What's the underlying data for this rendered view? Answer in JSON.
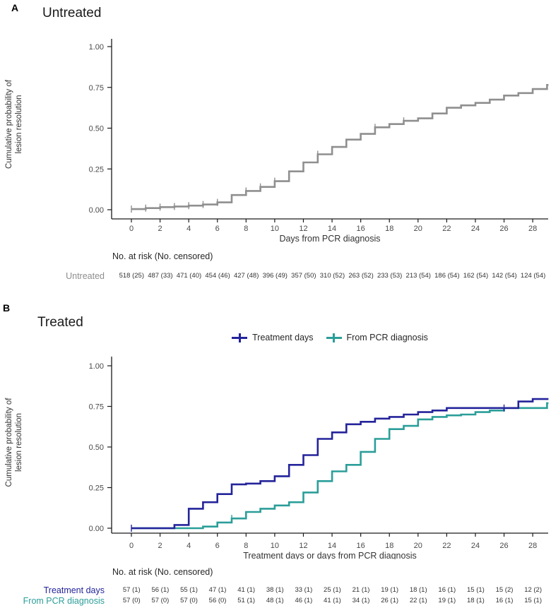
{
  "panel_a": {
    "label": "A",
    "title": "Untreated",
    "risk_header": "No. at risk (No. censored)",
    "risk_rows": [
      {
        "label": "Untreated",
        "color": "#8e8e8e",
        "values": [
          "518 (25)",
          "487 (33)",
          "471 (40)",
          "454 (46)",
          "427 (48)",
          "396 (49)",
          "357 (50)",
          "310 (52)",
          "263 (52)",
          "233 (53)",
          "213 (54)",
          "186 (54)",
          "162 (54)",
          "142 (54)",
          "124 (54)"
        ]
      }
    ]
  },
  "panel_b": {
    "label": "B",
    "title": "Treated",
    "risk_header": "No. at risk (No. censored)",
    "legend": [
      {
        "label": "Treatment days",
        "color": "#24249b"
      },
      {
        "label": "From PCR diagnosis",
        "color": "#2b9e99"
      }
    ],
    "risk_rows": [
      {
        "label": "Treatment days",
        "color": "#24249b",
        "values": [
          "57 (1)",
          "56 (1)",
          "55 (1)",
          "47 (1)",
          "41 (1)",
          "38 (1)",
          "33 (1)",
          "25 (1)",
          "21 (1)",
          "19 (1)",
          "18 (1)",
          "16 (1)",
          "15 (1)",
          "15 (2)",
          "12 (2)"
        ]
      },
      {
        "label": "From PCR diagnosis",
        "color": "#2b9e99",
        "values": [
          "57 (0)",
          "57 (0)",
          "57 (0)",
          "56 (0)",
          "51 (1)",
          "48 (1)",
          "46 (1)",
          "41 (1)",
          "34 (1)",
          "26 (1)",
          "22 (1)",
          "19 (1)",
          "18 (1)",
          "16 (1)",
          "15 (1)"
        ]
      }
    ]
  },
  "chart_data": [
    {
      "type": "line",
      "subtype": "step-cumulative-incidence",
      "panel": "A",
      "title": "Untreated",
      "xlabel": "Days from PCR diagnosis",
      "ylabel_lines": [
        "Cumulative probability of",
        "lesion resolution"
      ],
      "xlim": [
        0,
        29.1
      ],
      "ylim": [
        0,
        1
      ],
      "xticks": [
        0,
        2,
        4,
        6,
        8,
        10,
        12,
        14,
        16,
        18,
        20,
        22,
        24,
        26,
        28
      ],
      "yticks": [
        0.0,
        0.25,
        0.5,
        0.75,
        1.0
      ],
      "grid": false,
      "legend_position": "none",
      "series": [
        {
          "name": "Untreated",
          "color": "#8f8f8f",
          "days": [
            0,
            1,
            2,
            3,
            4,
            5,
            6,
            7,
            8,
            9,
            10,
            11,
            12,
            13,
            14,
            15,
            16,
            17,
            18,
            19,
            20,
            21,
            22,
            23,
            24,
            25,
            26,
            27,
            28,
            29
          ],
          "values": [
            0.004,
            0.01,
            0.016,
            0.02,
            0.025,
            0.032,
            0.045,
            0.09,
            0.115,
            0.14,
            0.175,
            0.235,
            0.29,
            0.34,
            0.385,
            0.43,
            0.465,
            0.505,
            0.525,
            0.545,
            0.56,
            0.59,
            0.625,
            0.64,
            0.655,
            0.675,
            0.7,
            0.715,
            0.74,
            0.765
          ],
          "censor_days": [
            0,
            1,
            2,
            3,
            4,
            5,
            6,
            8,
            9,
            10,
            13,
            17,
            19
          ]
        }
      ]
    },
    {
      "type": "line",
      "subtype": "step-cumulative-incidence",
      "panel": "B",
      "title": "Treated",
      "xlabel": "Treatment days or days from PCR diagnosis",
      "ylabel_lines": [
        "Cumulative probability of",
        "lesion resolution"
      ],
      "xlim": [
        0,
        29.1
      ],
      "ylim": [
        0,
        1
      ],
      "xticks": [
        0,
        2,
        4,
        6,
        8,
        10,
        12,
        14,
        16,
        18,
        20,
        22,
        24,
        26,
        28
      ],
      "yticks": [
        0.0,
        0.25,
        0.5,
        0.75,
        1.0
      ],
      "grid": false,
      "legend_position": "top-center",
      "series": [
        {
          "name": "From PCR diagnosis",
          "color": "#2b9e99",
          "days": [
            0,
            1,
            2,
            3,
            4,
            5,
            6,
            7,
            8,
            9,
            10,
            11,
            12,
            13,
            14,
            15,
            16,
            17,
            18,
            19,
            20,
            21,
            22,
            23,
            24,
            25,
            26,
            27,
            28,
            29
          ],
          "values": [
            0,
            0,
            0,
            0,
            0,
            0.01,
            0.035,
            0.06,
            0.1,
            0.12,
            0.14,
            0.16,
            0.22,
            0.29,
            0.35,
            0.39,
            0.47,
            0.55,
            0.61,
            0.63,
            0.67,
            0.685,
            0.695,
            0.7,
            0.715,
            0.725,
            0.74,
            0.74,
            0.74,
            0.77
          ],
          "censor_days": [
            7
          ]
        },
        {
          "name": "Treatment days",
          "color": "#24249b",
          "days": [
            0,
            1,
            2,
            3,
            4,
            5,
            6,
            7,
            8,
            9,
            10,
            11,
            12,
            13,
            14,
            15,
            16,
            17,
            18,
            19,
            20,
            21,
            22,
            23,
            24,
            25,
            26,
            27,
            28,
            29
          ],
          "values": [
            0,
            0,
            0,
            0.02,
            0.12,
            0.16,
            0.21,
            0.27,
            0.275,
            0.29,
            0.32,
            0.39,
            0.45,
            0.55,
            0.59,
            0.64,
            0.655,
            0.675,
            0.685,
            0.7,
            0.715,
            0.725,
            0.74,
            0.74,
            0.74,
            0.74,
            0.74,
            0.78,
            0.795,
            0.795
          ],
          "censor_days": [
            0,
            26
          ]
        }
      ]
    }
  ]
}
